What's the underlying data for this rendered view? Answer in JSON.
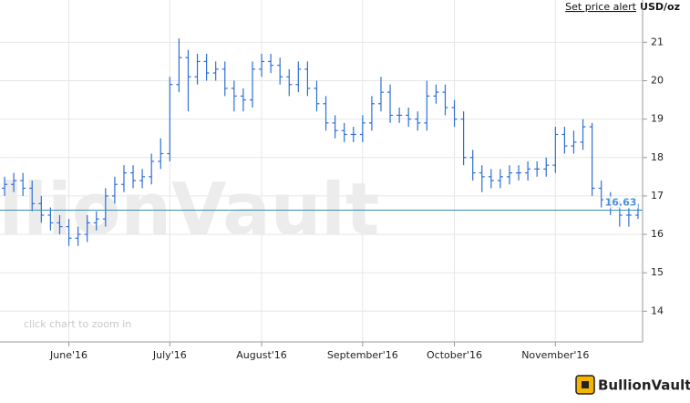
{
  "header": {
    "alert_link": "Set price alert",
    "unit": "USD/oz"
  },
  "watermark": "BullionVault",
  "zoom_hint": "click chart to zoom in",
  "logo": "BullionVault",
  "chart_data": {
    "type": "ohlc",
    "color": "#2f6fd6",
    "grid": true,
    "ylim": [
      13.2,
      22.1
    ],
    "yticks": [
      14,
      15,
      16,
      17,
      18,
      19,
      20,
      21
    ],
    "last_price": 16.63,
    "categories": [
      null,
      null,
      null,
      null,
      null,
      null,
      null,
      "June'16",
      null,
      null,
      null,
      null,
      null,
      null,
      null,
      null,
      null,
      null,
      "July'16",
      null,
      null,
      null,
      null,
      null,
      null,
      null,
      null,
      null,
      "August'16",
      null,
      null,
      null,
      null,
      null,
      null,
      null,
      null,
      null,
      null,
      "September'16",
      null,
      null,
      null,
      null,
      null,
      null,
      null,
      null,
      null,
      "October'16",
      null,
      null,
      null,
      null,
      null,
      null,
      null,
      null,
      null,
      null,
      "November'16",
      null,
      null,
      null,
      null,
      null,
      null,
      null,
      null,
      null
    ],
    "open": [
      17.2,
      17.3,
      17.4,
      17.2,
      16.8,
      16.5,
      16.3,
      16.2,
      15.9,
      16.0,
      16.3,
      16.4,
      17.0,
      17.3,
      17.6,
      17.4,
      17.5,
      17.9,
      18.1,
      19.9,
      20.6,
      20.1,
      20.5,
      20.2,
      20.3,
      19.8,
      19.6,
      19.5,
      20.3,
      20.5,
      20.4,
      20.1,
      19.9,
      20.3,
      19.8,
      19.4,
      18.9,
      18.7,
      18.6,
      18.6,
      18.9,
      19.4,
      19.7,
      19.1,
      19.1,
      19.0,
      18.9,
      19.6,
      19.7,
      19.3,
      19.0,
      18.0,
      17.6,
      17.5,
      17.4,
      17.5,
      17.6,
      17.6,
      17.7,
      17.7,
      17.8,
      18.6,
      18.3,
      18.4,
      18.8,
      17.2,
      16.9,
      16.7,
      16.5,
      16.5
    ],
    "high": [
      17.5,
      17.6,
      17.6,
      17.4,
      17.0,
      16.7,
      16.5,
      16.4,
      16.2,
      16.5,
      16.6,
      17.2,
      17.5,
      17.8,
      17.8,
      17.7,
      18.1,
      18.5,
      20.1,
      21.1,
      20.8,
      20.7,
      20.7,
      20.5,
      20.5,
      20.0,
      19.8,
      20.5,
      20.7,
      20.7,
      20.6,
      20.3,
      20.5,
      20.5,
      20.0,
      19.6,
      19.1,
      18.9,
      18.8,
      19.1,
      19.6,
      20.1,
      19.9,
      19.3,
      19.3,
      19.2,
      20.0,
      19.9,
      19.9,
      19.5,
      19.2,
      18.2,
      17.8,
      17.7,
      17.7,
      17.8,
      17.8,
      17.9,
      17.9,
      18.0,
      18.8,
      18.8,
      18.7,
      19.0,
      18.9,
      17.4,
      17.1,
      16.9,
      16.7,
      16.8
    ],
    "low": [
      17.0,
      17.1,
      17.0,
      16.6,
      16.3,
      16.1,
      16.0,
      15.7,
      15.7,
      15.8,
      16.1,
      16.2,
      16.8,
      17.1,
      17.2,
      17.2,
      17.3,
      17.7,
      17.9,
      19.7,
      19.2,
      19.9,
      20.0,
      20.0,
      19.6,
      19.2,
      19.2,
      19.3,
      20.1,
      20.2,
      19.9,
      19.6,
      19.7,
      19.6,
      19.2,
      18.7,
      18.5,
      18.4,
      18.4,
      18.4,
      18.7,
      19.2,
      18.9,
      18.9,
      18.8,
      18.7,
      18.7,
      19.4,
      19.1,
      18.8,
      17.8,
      17.4,
      17.1,
      17.2,
      17.2,
      17.3,
      17.4,
      17.4,
      17.5,
      17.5,
      17.6,
      18.1,
      18.1,
      18.2,
      17.0,
      16.7,
      16.5,
      16.2,
      16.2,
      16.4
    ],
    "close": [
      17.3,
      17.4,
      17.2,
      16.8,
      16.5,
      16.3,
      16.2,
      15.9,
      16.0,
      16.3,
      16.4,
      17.0,
      17.3,
      17.6,
      17.4,
      17.5,
      17.9,
      18.1,
      19.9,
      20.6,
      20.1,
      20.5,
      20.2,
      20.3,
      19.8,
      19.6,
      19.5,
      20.3,
      20.5,
      20.4,
      20.1,
      19.9,
      20.3,
      19.8,
      19.4,
      18.9,
      18.7,
      18.6,
      18.6,
      18.9,
      19.4,
      19.7,
      19.1,
      19.1,
      19.0,
      18.9,
      19.6,
      19.7,
      19.3,
      19.0,
      18.0,
      17.6,
      17.5,
      17.4,
      17.5,
      17.6,
      17.6,
      17.7,
      17.7,
      17.8,
      18.6,
      18.3,
      18.4,
      18.8,
      17.2,
      16.9,
      16.7,
      16.5,
      16.5,
      16.63
    ]
  }
}
